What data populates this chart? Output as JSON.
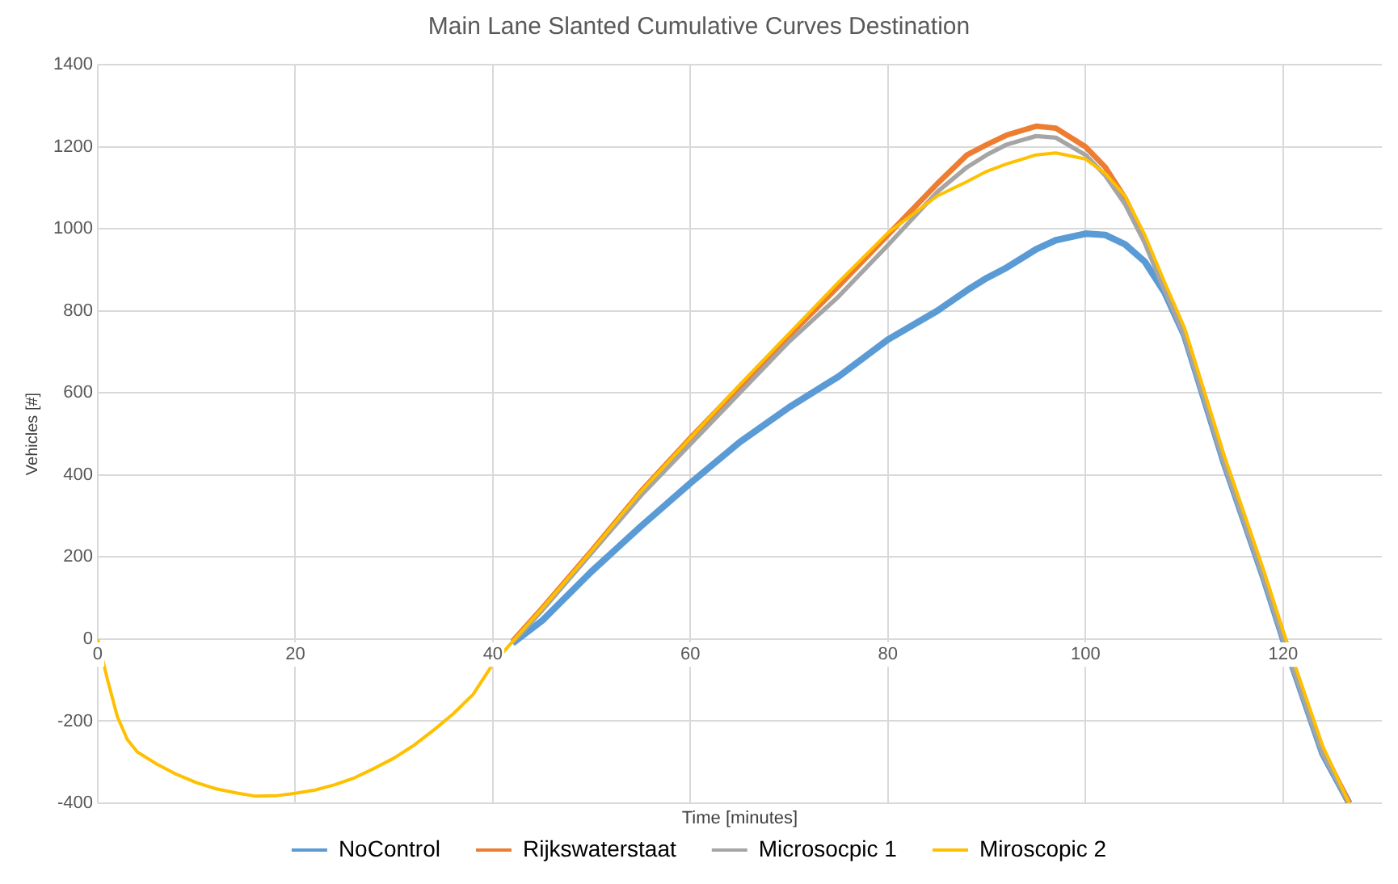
{
  "chart_data": {
    "type": "line",
    "title": "Main Lane Slanted Cumulative Curves Destination",
    "xlabel": "Time [minutes]",
    "ylabel": "Vehicles [#]",
    "x": [
      0,
      1,
      2,
      3,
      4,
      6,
      8,
      10,
      12,
      14,
      16,
      18,
      20,
      22,
      24,
      26,
      28,
      30,
      32,
      34,
      36,
      38,
      40,
      42,
      45,
      50,
      55,
      60,
      65,
      70,
      75,
      80,
      85,
      88,
      90,
      92,
      95,
      97,
      100,
      102,
      104,
      106,
      108,
      110,
      114,
      118,
      120,
      124,
      126.7
    ],
    "series": [
      {
        "name": "NoControl",
        "color": "#5b9bd5",
        "values": [
          null,
          null,
          null,
          null,
          null,
          null,
          null,
          null,
          null,
          null,
          null,
          null,
          null,
          null,
          null,
          null,
          null,
          null,
          null,
          null,
          null,
          null,
          null,
          -10,
          45,
          165,
          275,
          380,
          480,
          565,
          640,
          730,
          800,
          850,
          880,
          905,
          950,
          972,
          988,
          985,
          962,
          920,
          845,
          740,
          430,
          150,
          0,
          -280,
          -400
        ]
      },
      {
        "name": "Rijkswaterstaat",
        "color": "#ed7d31",
        "values": [
          null,
          null,
          null,
          null,
          null,
          null,
          null,
          null,
          null,
          null,
          null,
          null,
          null,
          null,
          null,
          null,
          null,
          null,
          null,
          null,
          null,
          null,
          null,
          -5,
          75,
          215,
          360,
          490,
          615,
          740,
          860,
          985,
          1110,
          1180,
          1205,
          1228,
          1250,
          1245,
          1200,
          1150,
          1075,
          975,
          860,
          750,
          440,
          160,
          10,
          -270,
          -400
        ]
      },
      {
        "name": "Microsocpic 1",
        "color": "#a5a5a5",
        "values": [
          null,
          null,
          null,
          null,
          null,
          null,
          null,
          null,
          null,
          null,
          null,
          null,
          null,
          null,
          null,
          null,
          null,
          null,
          null,
          null,
          null,
          null,
          null,
          -8,
          70,
          210,
          350,
          475,
          600,
          725,
          835,
          960,
          1090,
          1150,
          1180,
          1205,
          1226,
          1222,
          1180,
          1130,
          1060,
          965,
          850,
          740,
          430,
          150,
          0,
          -280,
          -400
        ]
      },
      {
        "name": "Miroscopic 2",
        "color": "#ffc000",
        "values": [
          0,
          -100,
          -190,
          -245,
          -275,
          -305,
          -330,
          -350,
          -365,
          -375,
          -383,
          -382,
          -376,
          -368,
          -355,
          -338,
          -315,
          -290,
          -259,
          -222,
          -182,
          -135,
          -61,
          -6,
          75,
          215,
          360,
          490,
          620,
          745,
          870,
          990,
          1080,
          1115,
          1140,
          1158,
          1180,
          1185,
          1170,
          1135,
          1080,
          985,
          870,
          760,
          450,
          170,
          20,
          -260,
          -400
        ]
      }
    ],
    "xlim": [
      0,
      130
    ],
    "xticks": [
      0,
      20,
      40,
      60,
      80,
      100,
      120
    ],
    "ylim": [
      -400,
      1400
    ],
    "yticks": [
      -400,
      -200,
      0,
      200,
      400,
      600,
      800,
      1000,
      1200,
      1400
    ],
    "grid": true,
    "legend": "bottom",
    "marker": "none",
    "line_style": "solid"
  }
}
